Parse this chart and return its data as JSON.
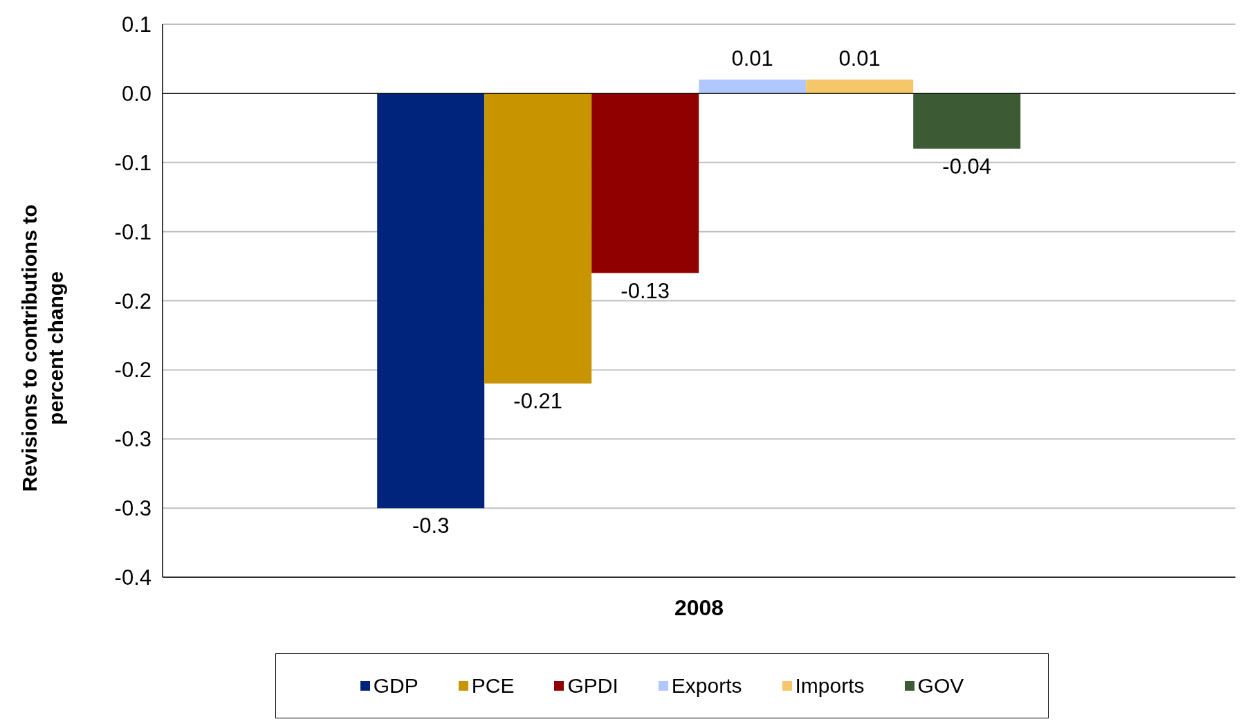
{
  "chart_data": {
    "type": "bar",
    "ylabel": "Revisions to contributions to percent change",
    "categories": [
      "2008"
    ],
    "series": [
      {
        "name": "GDP",
        "color": "#00237c",
        "values": [
          -0.3
        ]
      },
      {
        "name": "PCE",
        "color": "#c89400",
        "values": [
          -0.21
        ]
      },
      {
        "name": "GPDI",
        "color": "#900000",
        "values": [
          -0.13
        ]
      },
      {
        "name": "Exports",
        "color": "#b0c8ff",
        "values": [
          0.01
        ]
      },
      {
        "name": "Imports",
        "color": "#f5c66a",
        "values": [
          0.01
        ]
      },
      {
        "name": "GOV",
        "color": "#3c5a34",
        "values": [
          -0.04
        ]
      }
    ],
    "ylim": [
      -0.35,
      0.05
    ],
    "yticks": [
      {
        "value": 0.05,
        "label": "0.1"
      },
      {
        "value": 0,
        "label": "0.0"
      },
      {
        "value": -0.05,
        "label": "-0.1"
      },
      {
        "value": -0.1,
        "label": "-0.1"
      },
      {
        "value": -0.15,
        "label": "-0.2"
      },
      {
        "value": -0.2,
        "label": "-0.2"
      },
      {
        "value": -0.25,
        "label": "-0.3"
      },
      {
        "value": -0.3,
        "label": "-0.3"
      },
      {
        "value": -0.35,
        "label": "-0.4"
      }
    ],
    "ref_lines": [
      {
        "axis": "y",
        "value": 0,
        "color": "#000000"
      }
    ],
    "grid": "y",
    "legend": "bottom",
    "data_labels": true
  }
}
